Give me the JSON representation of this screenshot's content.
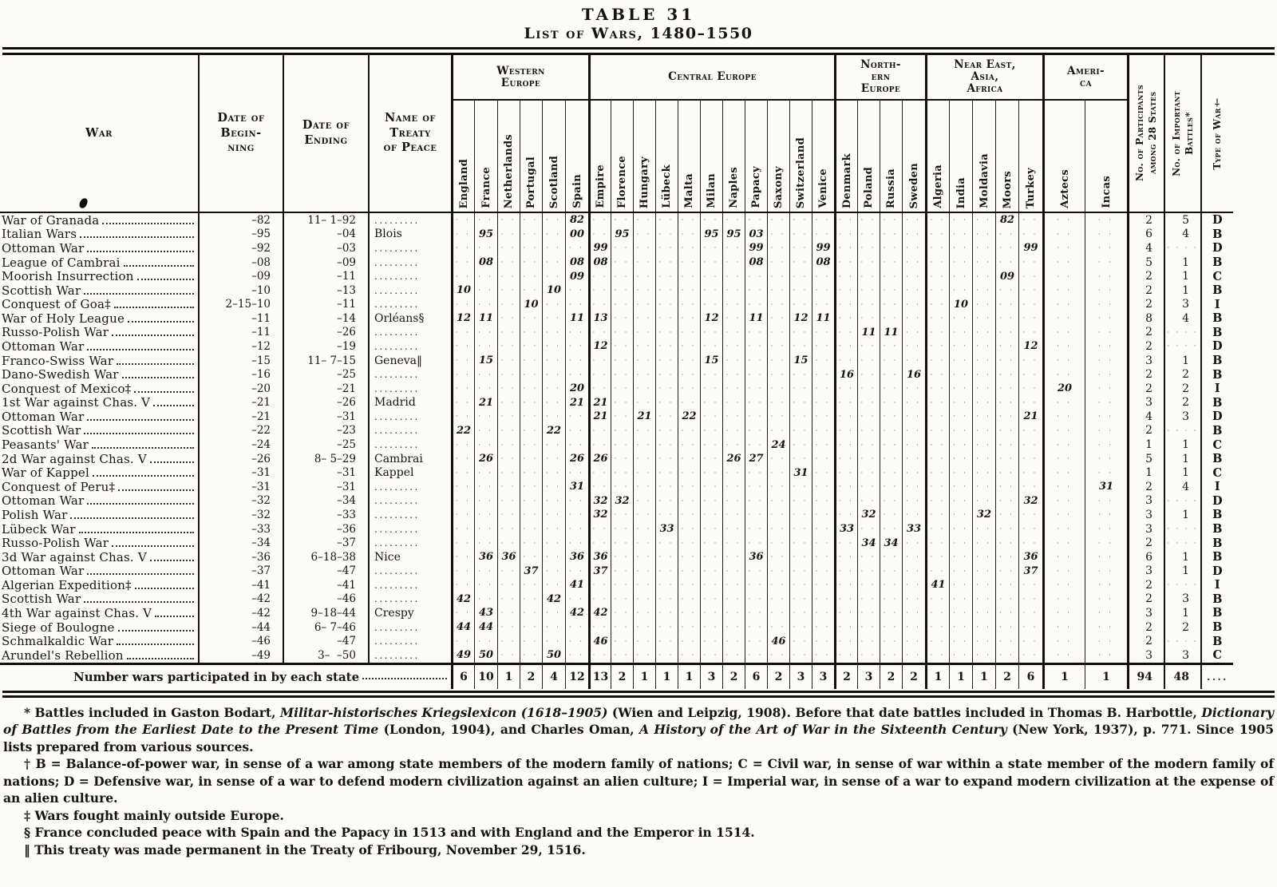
{
  "title": {
    "line1": "TABLE 31",
    "line2": "List of Wars, 1480–1550"
  },
  "header": {
    "war": "War",
    "begin": "Date of\nBegin-\nning",
    "end": "Date of\nEnding",
    "treaty": "Name of\nTreaty\nof Peace",
    "groups": [
      {
        "label": "Western\nEurope",
        "countries": [
          "England",
          "France",
          "Netherlands",
          "Portugal",
          "Scotland",
          "Spain"
        ]
      },
      {
        "label": "Central Europe",
        "countries": [
          "Empire",
          "Florence",
          "Hungary",
          "Lübeck",
          "Malta",
          "Milan",
          "Naples",
          "Papacy",
          "Saxony",
          "Switzerland",
          "Venice"
        ]
      },
      {
        "label": "North-\nern\nEurope",
        "countries": [
          "Denmark",
          "Poland",
          "Russia",
          "Sweden"
        ]
      },
      {
        "label": "Near East,\nAsia,\nAfrica",
        "countries": [
          "Algeria",
          "India",
          "Moldavia",
          "Moors",
          "Turkey"
        ]
      },
      {
        "label": "Ameri-\nca",
        "countries": [
          "Aztecs",
          "Incas"
        ]
      }
    ],
    "participants": "No. of Participants\namong 28 States",
    "battles": "No. of Important\nBattles*",
    "type": "Type of War†"
  },
  "wars": [
    {
      "name": "War of Granada",
      "begin": "–82",
      "end": "11– 1–92",
      "treaty": "",
      "cells": {
        "Spain": "82",
        "Moors": "82"
      },
      "participants": "2",
      "battles": "5",
      "type": "D"
    },
    {
      "name": "Italian Wars",
      "begin": "–95",
      "end": "–04",
      "treaty": "Blois",
      "cells": {
        "France": "95",
        "Spain": "00",
        "Florence": "95",
        "Milan": "95",
        "Naples": "95",
        "Papacy": "03"
      },
      "participants": "6",
      "battles": "4",
      "type": "B"
    },
    {
      "name": "Ottoman War",
      "begin": "–92",
      "end": "–03",
      "treaty": "",
      "cells": {
        "Empire": "99",
        "Papacy": "99",
        "Venice": "99",
        "Turkey": "99"
      },
      "participants": "4",
      "battles": "",
      "type": "D"
    },
    {
      "name": "League of Cambrai",
      "begin": "–08",
      "end": "–09",
      "treaty": "",
      "cells": {
        "France": "08",
        "Spain": "08",
        "Empire": "08",
        "Papacy": "08",
        "Venice": "08"
      },
      "participants": "5",
      "battles": "1",
      "type": "B"
    },
    {
      "name": "Moorish Insurrection",
      "begin": "–09",
      "end": "–11",
      "treaty": "",
      "cells": {
        "Spain": "09",
        "Moors": "09"
      },
      "participants": "2",
      "battles": "1",
      "type": "C"
    },
    {
      "name": "Scottish War",
      "begin": "–10",
      "end": "–13",
      "treaty": "",
      "cells": {
        "England": "10",
        "Scotland": "10"
      },
      "participants": "2",
      "battles": "1",
      "type": "B"
    },
    {
      "name": "Conquest of Goa‡",
      "begin": "2–15–10",
      "end": "–11",
      "treaty": "",
      "cells": {
        "Portugal": "10",
        "India": "10"
      },
      "participants": "2",
      "battles": "3",
      "type": "I"
    },
    {
      "name": "War of Holy League",
      "begin": "–11",
      "end": "–14",
      "treaty": "Orléans§",
      "cells": {
        "England": "12",
        "France": "11",
        "Spain": "11",
        "Empire": "13",
        "Milan": "12",
        "Papacy": "11",
        "Switzerland": "12",
        "Venice": "11"
      },
      "participants": "8",
      "battles": "4",
      "type": "B"
    },
    {
      "name": "Russo-Polish War",
      "begin": "–11",
      "end": "–26",
      "treaty": "",
      "cells": {
        "Poland": "11",
        "Russia": "11"
      },
      "participants": "2",
      "battles": "",
      "type": "B"
    },
    {
      "name": "Ottoman War",
      "begin": "–12",
      "end": "–19",
      "treaty": "",
      "cells": {
        "Empire": "12",
        "Turkey": "12"
      },
      "participants": "2",
      "battles": "",
      "type": "D"
    },
    {
      "name": "Franco-Swiss War",
      "begin": "–15",
      "end": "11– 7–15",
      "treaty": "Geneva‖",
      "cells": {
        "France": "15",
        "Milan": "15",
        "Switzerland": "15"
      },
      "participants": "3",
      "battles": "1",
      "type": "B"
    },
    {
      "name": "Dano-Swedish War",
      "begin": "–16",
      "end": "–25",
      "treaty": "",
      "cells": {
        "Denmark": "16",
        "Sweden": "16"
      },
      "participants": "2",
      "battles": "2",
      "type": "B"
    },
    {
      "name": "Conquest of Mexico‡",
      "begin": "–20",
      "end": "–21",
      "treaty": "",
      "cells": {
        "Spain": "20",
        "Aztecs": "20"
      },
      "participants": "2",
      "battles": "2",
      "type": "I"
    },
    {
      "name": "1st War against Chas. V",
      "begin": "–21",
      "end": "–26",
      "treaty": "Madrid",
      "cells": {
        "France": "21",
        "Spain": "21",
        "Empire": "21"
      },
      "participants": "3",
      "battles": "2",
      "type": "B"
    },
    {
      "name": "Ottoman War",
      "begin": "–21",
      "end": "–31",
      "treaty": "",
      "cells": {
        "Empire": "21",
        "Hungary": "21",
        "Malta": "22",
        "Turkey": "21"
      },
      "participants": "4",
      "battles": "3",
      "type": "D"
    },
    {
      "name": "Scottish War",
      "begin": "–22",
      "end": "–23",
      "treaty": "",
      "cells": {
        "England": "22",
        "Scotland": "22"
      },
      "participants": "2",
      "battles": "",
      "type": "B"
    },
    {
      "name": "Peasants' War",
      "begin": "–24",
      "end": "–25",
      "treaty": "",
      "cells": {
        "Saxony": "24"
      },
      "participants": "1",
      "battles": "1",
      "type": "C"
    },
    {
      "name": "2d War against Chas. V",
      "begin": "–26",
      "end": "8– 5–29",
      "treaty": "Cambrai",
      "cells": {
        "France": "26",
        "Spain": "26",
        "Empire": "26",
        "Naples": "26",
        "Papacy": "27"
      },
      "participants": "5",
      "battles": "1",
      "type": "B"
    },
    {
      "name": "War of Kappel",
      "begin": "–31",
      "end": "–31",
      "treaty": "Kappel",
      "cells": {
        "Switzerland": "31"
      },
      "participants": "1",
      "battles": "1",
      "type": "C"
    },
    {
      "name": "Conquest of Peru‡",
      "begin": "–31",
      "end": "–31",
      "treaty": "",
      "cells": {
        "Spain": "31",
        "Incas": "31"
      },
      "participants": "2",
      "battles": "4",
      "type": "I"
    },
    {
      "name": "Ottoman War",
      "begin": "–32",
      "end": "–34",
      "treaty": "",
      "cells": {
        "Empire": "32",
        "Florence": "32",
        "Turkey": "32"
      },
      "participants": "3",
      "battles": "",
      "type": "D"
    },
    {
      "name": "Polish War",
      "begin": "–32",
      "end": "–33",
      "treaty": "",
      "cells": {
        "Empire": "32",
        "Poland": "32",
        "Moldavia": "32"
      },
      "participants": "3",
      "battles": "1",
      "type": "B"
    },
    {
      "name": "Lübeck War",
      "begin": "–33",
      "end": "–36",
      "treaty": "",
      "cells": {
        "Lübeck": "33",
        "Denmark": "33",
        "Sweden": "33"
      },
      "participants": "3",
      "battles": "",
      "type": "B"
    },
    {
      "name": "Russo-Polish War",
      "begin": "–34",
      "end": "–37",
      "treaty": "",
      "cells": {
        "Poland": "34",
        "Russia": "34"
      },
      "participants": "2",
      "battles": "",
      "type": "B"
    },
    {
      "name": "3d War against Chas. V",
      "begin": "–36",
      "end": "6–18–38",
      "treaty": "Nice",
      "cells": {
        "France": "36",
        "Netherlands": "36",
        "Spain": "36",
        "Empire": "36",
        "Papacy": "36",
        "Turkey": "36"
      },
      "participants": "6",
      "battles": "1",
      "type": "B"
    },
    {
      "name": "Ottoman War",
      "begin": "–37",
      "end": "–47",
      "treaty": "",
      "cells": {
        "Portugal": "37",
        "Empire": "37",
        "Turkey": "37"
      },
      "participants": "3",
      "battles": "1",
      "type": "D"
    },
    {
      "name": "Algerian Expedition‡",
      "begin": "–41",
      "end": "–41",
      "treaty": "",
      "cells": {
        "Spain": "41",
        "Algeria": "41"
      },
      "participants": "2",
      "battles": "",
      "type": "I"
    },
    {
      "name": "Scottish War",
      "begin": "–42",
      "end": "–46",
      "treaty": "",
      "cells": {
        "England": "42",
        "Scotland": "42"
      },
      "participants": "2",
      "battles": "3",
      "type": "B"
    },
    {
      "name": "4th War against Chas. V",
      "begin": "–42",
      "end": "9–18–44",
      "treaty": "Crespy",
      "cells": {
        "France": "43",
        "Spain": "42",
        "Empire": "42"
      },
      "participants": "3",
      "battles": "1",
      "type": "B"
    },
    {
      "name": "Siege of Boulogne",
      "begin": "–44",
      "end": "6– 7–46",
      "treaty": "",
      "cells": {
        "England": "44",
        "France": "44"
      },
      "participants": "2",
      "battles": "2",
      "type": "B"
    },
    {
      "name": "Schmalkaldic War",
      "begin": "–46",
      "end": "–47",
      "treaty": "",
      "cells": {
        "Empire": "46",
        "Saxony": "46"
      },
      "participants": "2",
      "battles": "",
      "type": "B"
    },
    {
      "name": "Arundel's Rebellion",
      "begin": "–49",
      "end": "3–  –50",
      "treaty": "",
      "cells": {
        "England": "49",
        "France": "50",
        "Scotland": "50"
      },
      "participants": "3",
      "battles": "3",
      "type": "C"
    }
  ],
  "footer": {
    "label": "Number wars participated in by each state",
    "values": {
      "England": "6",
      "France": "10",
      "Netherlands": "1",
      "Portugal": "2",
      "Scotland": "4",
      "Spain": "12",
      "Empire": "13",
      "Florence": "2",
      "Hungary": "1",
      "Lübeck": "1",
      "Malta": "1",
      "Milan": "3",
      "Naples": "2",
      "Papacy": "6",
      "Saxony": "2",
      "Switzerland": "3",
      "Venice": "3",
      "Denmark": "2",
      "Poland": "3",
      "Russia": "2",
      "Sweden": "2",
      "Algeria": "1",
      "India": "1",
      "Moldavia": "1",
      "Moors": "2",
      "Turkey": "6",
      "Aztecs": "1",
      "Incas": "1"
    },
    "participants": "94",
    "battles": "48",
    "type": "...."
  },
  "footnotes": [
    [
      {
        "t": "* Battles included in Gaston Bodart, "
      },
      {
        "t": "Militar-historisches Kriegslexicon (1618–1905)",
        "i": true
      },
      {
        "t": " (Wien and Leipzig, 1908).  Before that date battles included in Thomas B. Harbottle, "
      },
      {
        "t": "Dictionary of Battles from the Earliest Date to the Present Time",
        "i": true
      },
      {
        "t": " (London, 1904), and Charles Oman, "
      },
      {
        "t": "A History of the Art of War in the Sixteenth Century",
        "i": true
      },
      {
        "t": " (New York, 1937), p. 771.  Since 1905 lists prepared from various sources."
      }
    ],
    [
      {
        "t": "† B = Balance-of-power war, in sense of a war among state members of the modern family of nations; C = Civil war, in sense of war within a state member of the modern family of nations; D = Defensive war, in sense of a war to defend modern civilization against an alien culture; I = Imperial war, in sense of a war to expand modern civilization at the expense of an alien culture."
      }
    ],
    [
      {
        "t": "‡ Wars fought mainly outside Europe."
      }
    ],
    [
      {
        "t": "§ France concluded peace with Spain and the Papacy in 1513 and with England and the Emperor in 1514."
      }
    ],
    [
      {
        "t": "‖ This treaty was made permanent in the Treaty of Fribourg, November 29, 1516."
      }
    ]
  ]
}
